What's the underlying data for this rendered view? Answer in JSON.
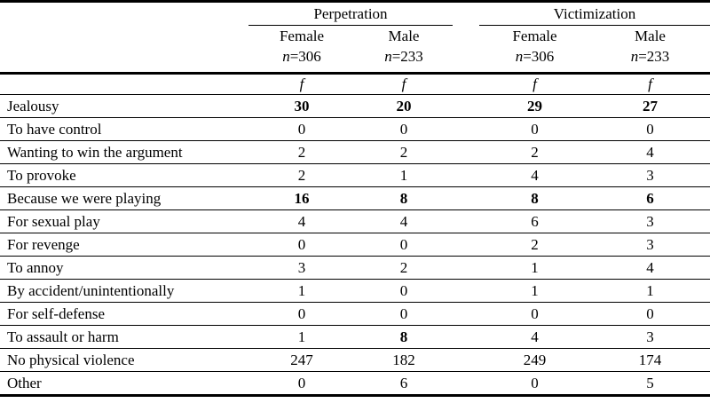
{
  "colors": {
    "rule": "#000000",
    "background": "#ffffff",
    "text": "#000000"
  },
  "table": {
    "groups": [
      {
        "label": "Perpetration",
        "columns": [
          {
            "sex": "Female",
            "n_symbol": "n",
            "n_value": "=306"
          },
          {
            "sex": "Male",
            "n_symbol": "n",
            "n_value": "=233"
          }
        ]
      },
      {
        "label": "Victimization",
        "columns": [
          {
            "sex": "Female",
            "n_symbol": "n",
            "n_value": "=306"
          },
          {
            "sex": "Male",
            "n_symbol": "n",
            "n_value": "=233"
          }
        ]
      }
    ],
    "stat_symbol": "f",
    "rows": [
      {
        "label": "Jealousy",
        "values": [
          "30",
          "20",
          "29",
          "27"
        ],
        "bold": [
          true,
          true,
          true,
          true
        ]
      },
      {
        "label": "To have control",
        "values": [
          "0",
          "0",
          "0",
          "0"
        ],
        "bold": [
          false,
          false,
          false,
          false
        ]
      },
      {
        "label": "Wanting to win the argument",
        "values": [
          "2",
          "2",
          "2",
          "4"
        ],
        "bold": [
          false,
          false,
          false,
          false
        ]
      },
      {
        "label": "To provoke",
        "values": [
          "2",
          "1",
          "4",
          "3"
        ],
        "bold": [
          false,
          false,
          false,
          false
        ]
      },
      {
        "label": "Because we were playing",
        "values": [
          "16",
          "8",
          "8",
          "6"
        ],
        "bold": [
          true,
          true,
          true,
          true
        ]
      },
      {
        "label": "For sexual play",
        "values": [
          "4",
          "4",
          "6",
          "3"
        ],
        "bold": [
          false,
          false,
          false,
          false
        ]
      },
      {
        "label": "For revenge",
        "values": [
          "0",
          "0",
          "2",
          "3"
        ],
        "bold": [
          false,
          false,
          false,
          false
        ]
      },
      {
        "label": "To annoy",
        "values": [
          "3",
          "2",
          "1",
          "4"
        ],
        "bold": [
          false,
          false,
          false,
          false
        ]
      },
      {
        "label": "By accident/unintentionally",
        "values": [
          "1",
          "0",
          "1",
          "1"
        ],
        "bold": [
          false,
          false,
          false,
          false
        ]
      },
      {
        "label": "For self-defense",
        "values": [
          "0",
          "0",
          "0",
          "0"
        ],
        "bold": [
          false,
          false,
          false,
          false
        ]
      },
      {
        "label": "To assault or harm",
        "values": [
          "1",
          "8",
          "4",
          "3"
        ],
        "bold": [
          false,
          true,
          false,
          false
        ]
      },
      {
        "label": "No physical violence",
        "values": [
          "247",
          "182",
          "249",
          "174"
        ],
        "bold": [
          false,
          false,
          false,
          false
        ]
      },
      {
        "label": "Other",
        "values": [
          "0",
          "6",
          "0",
          "5"
        ],
        "bold": [
          false,
          false,
          false,
          false
        ]
      }
    ]
  }
}
